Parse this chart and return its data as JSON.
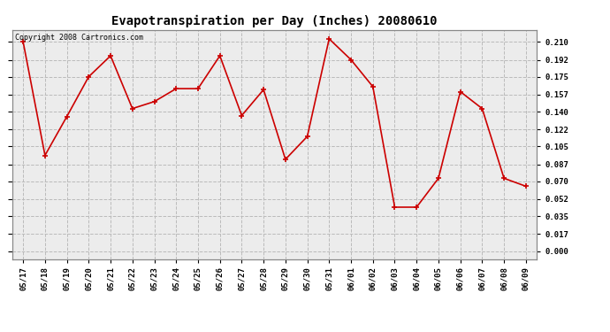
{
  "title": "Evapotranspiration per Day (Inches) 20080610",
  "copyright": "Copyright 2008 Cartronics.com",
  "dates": [
    "05/17",
    "05/18",
    "05/19",
    "05/20",
    "05/21",
    "05/22",
    "05/23",
    "05/24",
    "05/25",
    "05/26",
    "05/27",
    "05/28",
    "05/29",
    "05/30",
    "05/31",
    "06/01",
    "06/02",
    "06/03",
    "06/04",
    "06/05",
    "06/06",
    "06/07",
    "06/08",
    "06/09"
  ],
  "values": [
    0.21,
    0.096,
    0.135,
    0.175,
    0.196,
    0.143,
    0.15,
    0.163,
    0.163,
    0.196,
    0.136,
    0.162,
    0.092,
    0.115,
    0.213,
    0.192,
    0.165,
    0.044,
    0.044,
    0.073,
    0.16,
    0.143,
    0.073,
    0.065
  ],
  "line_color": "#cc0000",
  "marker": "+",
  "marker_size": 4,
  "marker_lw": 1.2,
  "line_width": 1.2,
  "bg_color": "#ffffff",
  "plot_bg_color": "#ececec",
  "grid_color": "#bbbbbb",
  "title_fontsize": 10,
  "copyright_fontsize": 6,
  "tick_fontsize": 6.5,
  "yticks": [
    0.0,
    0.017,
    0.035,
    0.052,
    0.07,
    0.087,
    0.105,
    0.122,
    0.14,
    0.157,
    0.175,
    0.192,
    0.21
  ],
  "ylim": [
    -0.008,
    0.222
  ]
}
